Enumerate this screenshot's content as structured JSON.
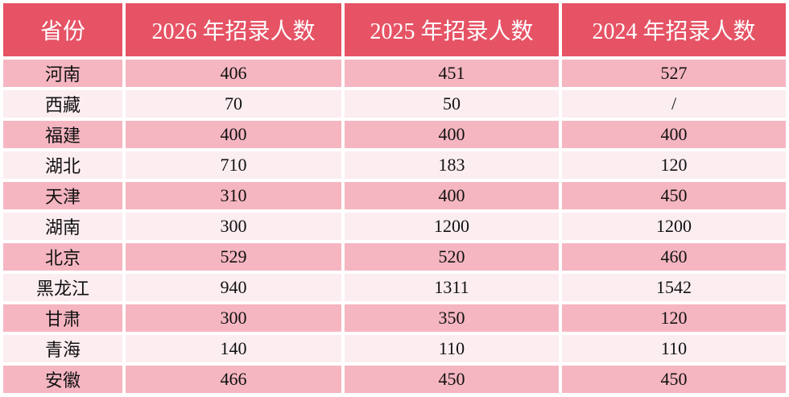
{
  "colors": {
    "header_bg": "#e65365",
    "header_text": "#ffffff",
    "row_odd_bg": "#f5b6c1",
    "row_even_bg": "#fbedf0",
    "body_text": "#111111",
    "gap": "#ffffff"
  },
  "table": {
    "headers": [
      "省份",
      "2026 年招录人数",
      "2025 年招录人数",
      "2024 年招录人数"
    ],
    "rows": [
      [
        "河南",
        "406",
        "451",
        "527"
      ],
      [
        "西藏",
        "70",
        "50",
        "/"
      ],
      [
        "福建",
        "400",
        "400",
        "400"
      ],
      [
        "湖北",
        "710",
        "183",
        "120"
      ],
      [
        "天津",
        "310",
        "400",
        "450"
      ],
      [
        "湖南",
        "300",
        "1200",
        "1200"
      ],
      [
        "北京",
        "529",
        "520",
        "460"
      ],
      [
        "黑龙江",
        "940",
        "1311",
        "1542"
      ],
      [
        "甘肃",
        "300",
        "350",
        "120"
      ],
      [
        "青海",
        "140",
        "110",
        "110"
      ],
      [
        "安徽",
        "466",
        "450",
        "450"
      ]
    ]
  }
}
